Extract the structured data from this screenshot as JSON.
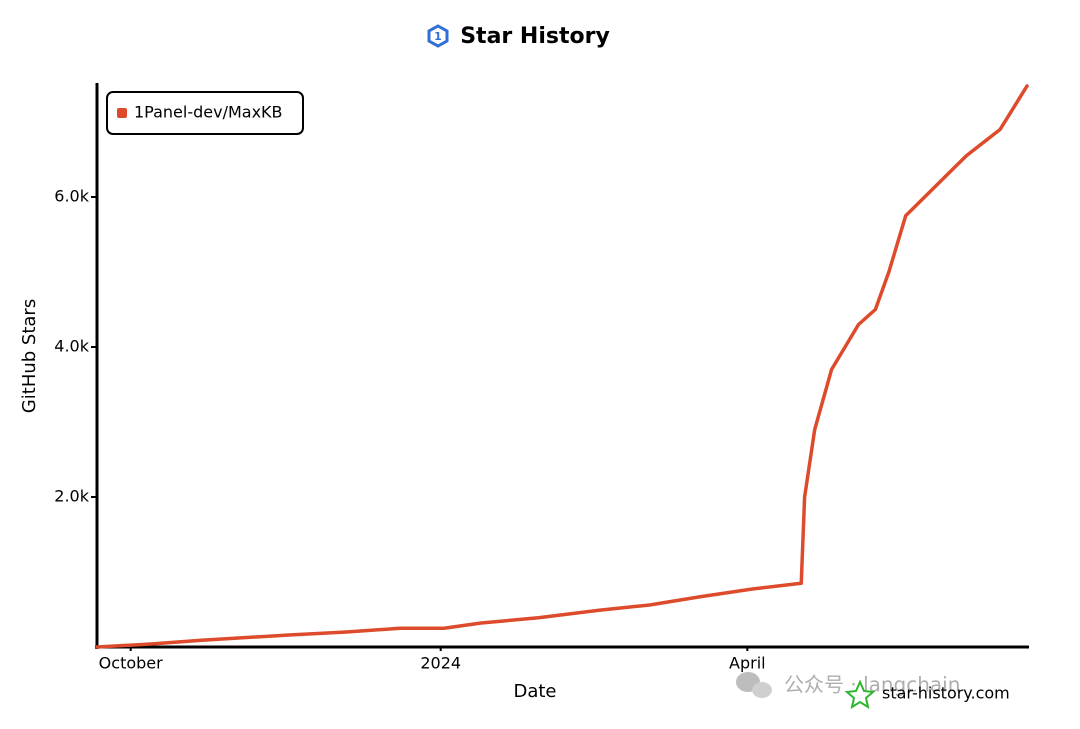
{
  "chart_data": {
    "type": "line",
    "title": "Star History",
    "xlabel": "Date",
    "ylabel": "GitHub Stars",
    "x": [
      0,
      16,
      31,
      57,
      74,
      90,
      103,
      114,
      131,
      149,
      164,
      179,
      194,
      209,
      210,
      213,
      218,
      226,
      231,
      235,
      240,
      249,
      258,
      268,
      276
    ],
    "xlim": [
      0,
      276
    ],
    "xticks": [
      {
        "value": 10,
        "label": "October"
      },
      {
        "value": 102,
        "label": "2024"
      },
      {
        "value": 193,
        "label": "April"
      }
    ],
    "ylim": [
      0,
      7500
    ],
    "yticks": [
      {
        "value": 2000,
        "label": "2.0k"
      },
      {
        "value": 4000,
        "label": "4.0k"
      },
      {
        "value": 6000,
        "label": "6.0k"
      }
    ],
    "series": [
      {
        "name": "1Panel-dev/MaxKB",
        "color": "#dd4b2c",
        "values": [
          0,
          40,
          90,
          160,
          200,
          250,
          250,
          320,
          390,
          490,
          560,
          670,
          770,
          850,
          2000,
          2900,
          3700,
          4300,
          4500,
          5000,
          5750,
          6150,
          6550,
          6900,
          7480
        ]
      }
    ],
    "legend": "top-left",
    "credit": "star-history.com",
    "watermark": "公众号 · langchain"
  }
}
